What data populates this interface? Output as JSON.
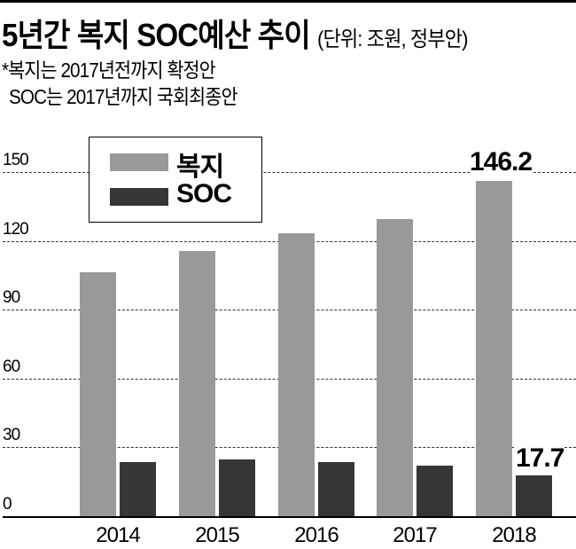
{
  "header": {
    "title": "5년간 복지 SOC예산 추이",
    "unit_note": "(단위: 조원, 정부안)",
    "note_line1": "*복지는 2017년전까지 확정안",
    "note_line2": "SOC는 2017년까지 국회최종안"
  },
  "legend": {
    "welfare_label": "복지",
    "soc_label": "SOC"
  },
  "axis": {
    "y_ticks": [
      "0",
      "30",
      "60",
      "90",
      "120",
      "150"
    ],
    "x_labels": [
      "2014",
      "2015",
      "2016",
      "2017",
      "2018"
    ]
  },
  "annotations": {
    "welfare_2018": "146.2",
    "soc_2018": "17.7"
  },
  "colors": {
    "welfare": "#999999",
    "soc": "#363636"
  },
  "chart_data": {
    "type": "bar",
    "title": "5년간 복지 SOC예산 추이",
    "subtitle": "(단위: 조원, 정부안)",
    "notes": [
      "*복지는 2017년전까지 확정안",
      "SOC는 2017년까지 국회최종안"
    ],
    "categories": [
      "2014",
      "2015",
      "2016",
      "2017",
      "2018"
    ],
    "series": [
      {
        "name": "복지",
        "values": [
          106.4,
          115.7,
          123.4,
          129.5,
          146.2
        ],
        "color": "#999999"
      },
      {
        "name": "SOC",
        "values": [
          23.7,
          24.8,
          23.7,
          22.1,
          17.7
        ],
        "color": "#363636"
      }
    ],
    "xlabel": "",
    "ylabel": "",
    "ylim": [
      0,
      160
    ],
    "yticks": [
      0,
      30,
      60,
      90,
      120,
      150
    ],
    "grid": true,
    "legend_position": "upper-left",
    "data_labels": [
      {
        "series": "복지",
        "category": "2018",
        "text": "146.2"
      },
      {
        "series": "SOC",
        "category": "2018",
        "text": "17.7"
      }
    ]
  }
}
